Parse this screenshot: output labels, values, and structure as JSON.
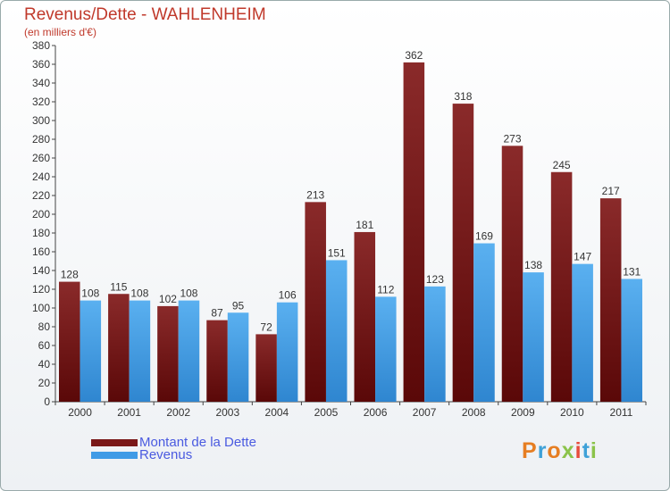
{
  "title": "Revenus/Dette - WAHLENHEIM",
  "subtitle": "(en milliers d'€)",
  "legend": [
    {
      "label": "Montant de la Dette",
      "color": "#7a1818"
    },
    {
      "label": "Revenus",
      "color": "#3f9be6"
    }
  ],
  "logo": {
    "text": "Proxiti",
    "colors": [
      "#e67e22",
      "#3ea1d8",
      "#e67e22",
      "#8bc34a",
      "#e74c3c",
      "#3ea1d8",
      "#8bc34a"
    ]
  },
  "chart_data": {
    "type": "bar",
    "categories": [
      "2000",
      "2001",
      "2002",
      "2003",
      "2004",
      "2005",
      "2006",
      "2007",
      "2008",
      "2009",
      "2010",
      "2011"
    ],
    "series": [
      {
        "name": "Montant de la Dette",
        "color": "#7a1818",
        "values": [
          128,
          115,
          102,
          87,
          72,
          213,
          181,
          362,
          318,
          273,
          245,
          217
        ]
      },
      {
        "name": "Revenus",
        "color": "#3f9be6",
        "values": [
          108,
          108,
          108,
          95,
          106,
          151,
          112,
          123,
          169,
          138,
          147,
          131
        ]
      }
    ],
    "ylim": [
      0,
      380
    ],
    "ytick_step": 20,
    "grid": false
  }
}
